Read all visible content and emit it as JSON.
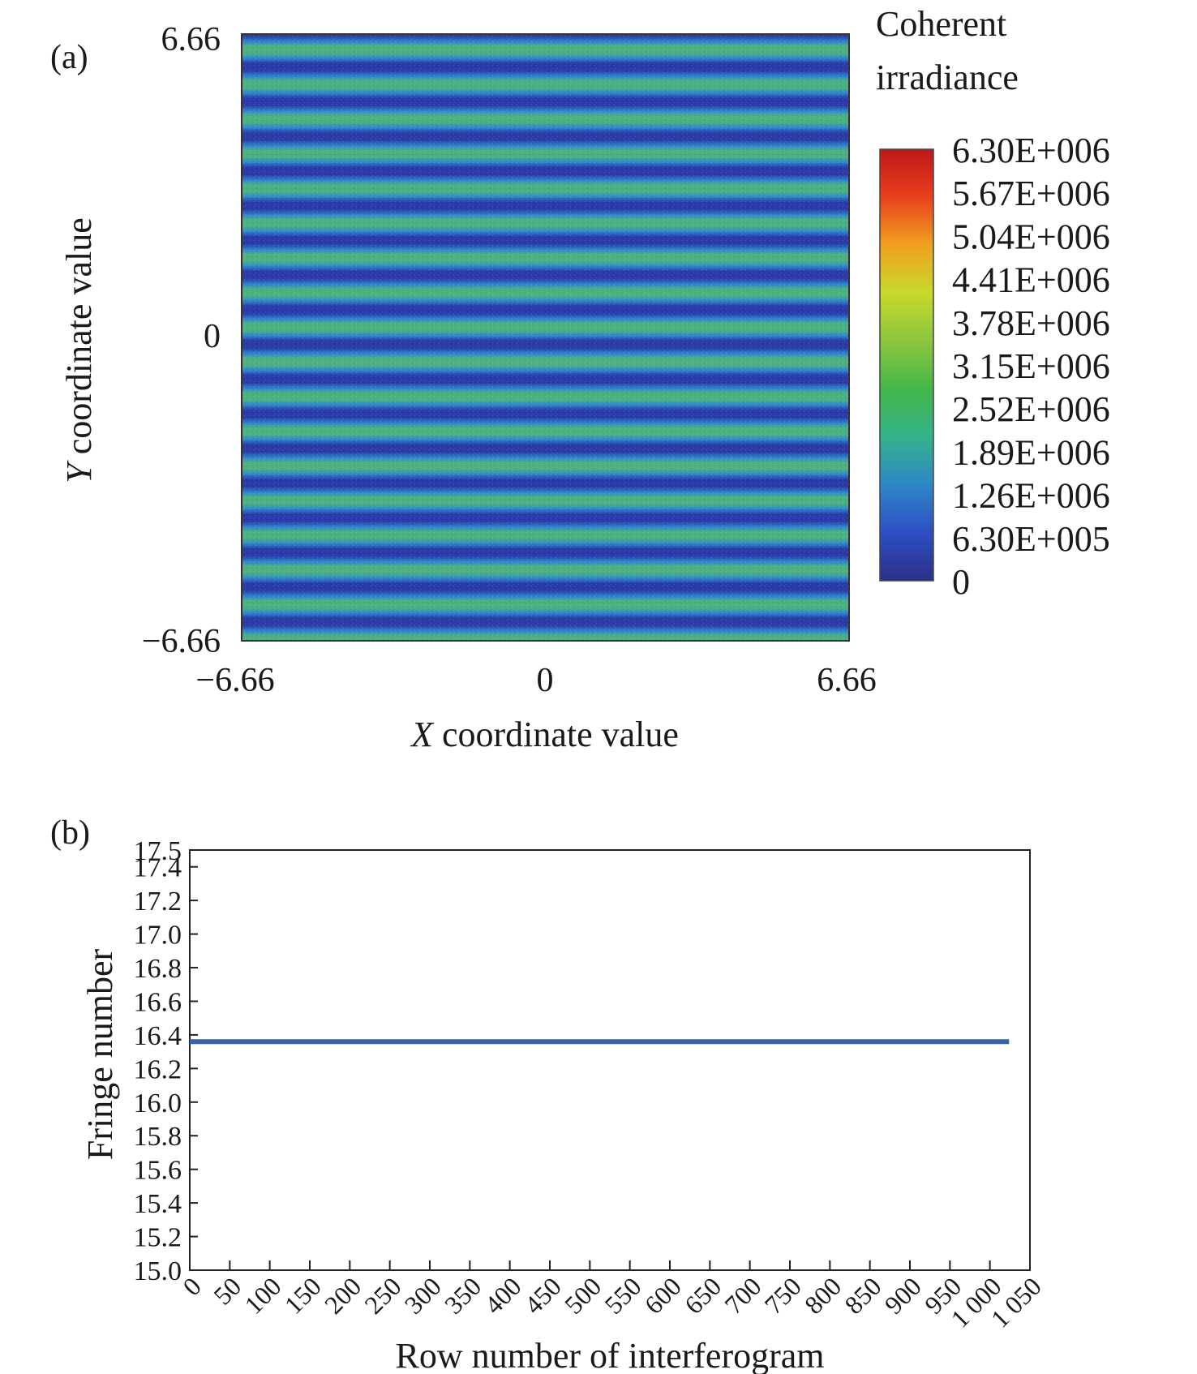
{
  "panel_a": {
    "panel_label": "(a)",
    "colorbar_title_line1": "Coherent",
    "colorbar_title_line2": "irradiance",
    "colorbar_colors": [
      "#2b2f8a",
      "#2d4fc2",
      "#2e86c8",
      "#33b38c",
      "#44b648",
      "#8cc63f",
      "#c8d92a",
      "#f0a020",
      "#e8401c",
      "#c01818"
    ],
    "fringe_colors": {
      "dark": "#2a3aa8",
      "mid": "#2f8ad0",
      "light": "#4cb080"
    }
  },
  "panel_b": {
    "panel_label": "(b)",
    "line_color": "#3a64a4"
  },
  "chart_data": [
    {
      "type": "heatmap",
      "title": "",
      "xlabel_italic": "X",
      "xlabel_rest": " coordinate value",
      "ylabel_italic": "Y",
      "ylabel_rest": " coordinate value",
      "xlim": [
        -6.66,
        6.66
      ],
      "ylim": [
        -6.66,
        6.66
      ],
      "x_ticks": [
        "−6.66",
        "0",
        "6.66"
      ],
      "y_ticks": [
        "6.66",
        "0",
        "−6.66"
      ],
      "fringe_count": 17,
      "fringe_orientation": "horizontal",
      "colorbar_label": "Coherent irradiance",
      "colorbar_ticks": [
        "6.30E+006",
        "5.67E+006",
        "5.04E+006",
        "4.41E+006",
        "3.78E+006",
        "3.15E+006",
        "2.52E+006",
        "1.89E+006",
        "1.26E+006",
        "6.30E+005",
        "0"
      ],
      "colorbar_range": [
        0,
        6300000
      ]
    },
    {
      "type": "line",
      "title": "",
      "xlabel": "Row number of interferogram",
      "ylabel": "Fringe number",
      "xlim": [
        0,
        1050
      ],
      "ylim": [
        15.0,
        17.5
      ],
      "x_ticks": [
        "0",
        "50",
        "100",
        "150",
        "200",
        "250",
        "300",
        "350",
        "400",
        "450",
        "500",
        "550",
        "600",
        "650",
        "700",
        "750",
        "800",
        "850",
        "900",
        "950",
        "1 000",
        "1 050"
      ],
      "y_ticks": [
        "17.5",
        "17.4",
        "17.2",
        "17.0",
        "16.8",
        "16.6",
        "16.4",
        "16.2",
        "16.0",
        "15.8",
        "15.6",
        "15.4",
        "15.2",
        "15.0"
      ],
      "series": [
        {
          "x": [
            0,
            1024
          ],
          "y": [
            16.36,
            16.36
          ]
        }
      ]
    }
  ]
}
